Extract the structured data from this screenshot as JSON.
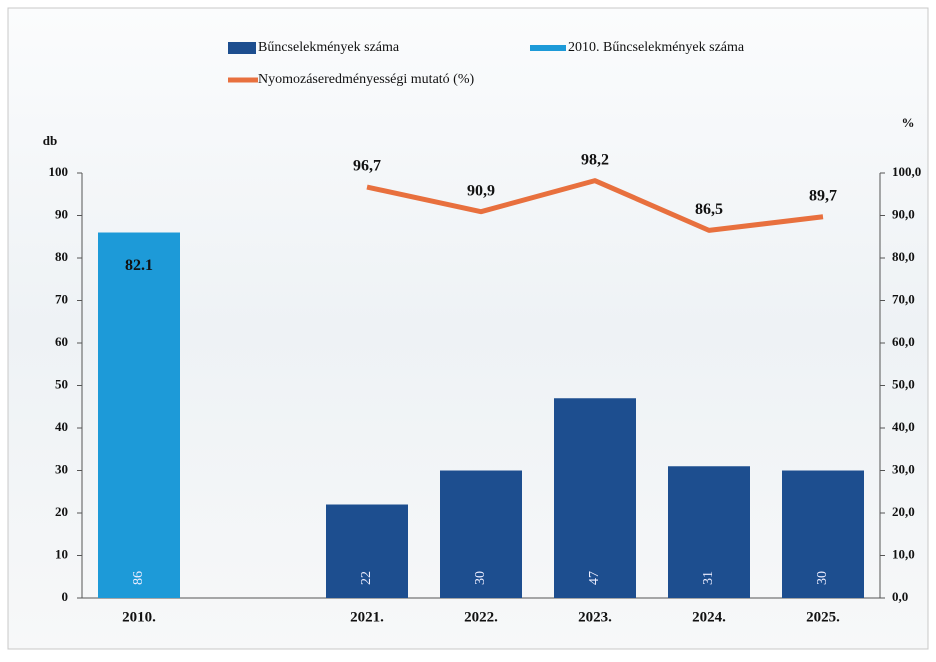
{
  "chart_data": {
    "type": "bar",
    "categories": [
      "2010.",
      null,
      "2021.",
      "2022.",
      "2023.",
      "2024.",
      "2025."
    ],
    "series": [
      {
        "name": "Bűncselekmények száma",
        "type": "bar",
        "color": "#1d4e8f",
        "values": [
          null,
          null,
          22,
          30,
          47,
          31,
          30
        ]
      },
      {
        "name": "2010. Bűncselekmények száma",
        "type": "bar",
        "color": "#1d9ad8",
        "values": [
          86,
          null,
          null,
          null,
          null,
          null,
          null
        ]
      },
      {
        "name": "Nyomozáseredményességi mutató (%)",
        "type": "line",
        "axis": "y2",
        "color": "#e8703e",
        "values": [
          null,
          null,
          96.7,
          90.9,
          98.2,
          86.5,
          89.7
        ],
        "value_labels": [
          null,
          null,
          "96,7",
          "90,9",
          "98,2",
          "86,5",
          "89,7"
        ]
      }
    ],
    "annotations": [
      "82.1"
    ],
    "y_label": "db",
    "y2_label": "%",
    "ylim": [
      0,
      100
    ],
    "yticks": [
      0,
      10,
      20,
      30,
      40,
      50,
      60,
      70,
      80,
      90,
      100
    ],
    "y2lim": [
      0,
      100
    ],
    "y2ticks": [
      {
        "value": 0,
        "label": "0,0"
      },
      {
        "value": 10,
        "label": "10,0"
      },
      {
        "value": 20,
        "label": "20,0"
      },
      {
        "value": 30,
        "label": "30,0"
      },
      {
        "value": 40,
        "label": "40,0"
      },
      {
        "value": 50,
        "label": "50,0"
      },
      {
        "value": 60,
        "label": "60,0"
      },
      {
        "value": 70,
        "label": "70,0"
      },
      {
        "value": 80,
        "label": "80,0"
      },
      {
        "value": 90,
        "label": "90,0"
      },
      {
        "value": 100,
        "label": "100,0"
      }
    ]
  }
}
